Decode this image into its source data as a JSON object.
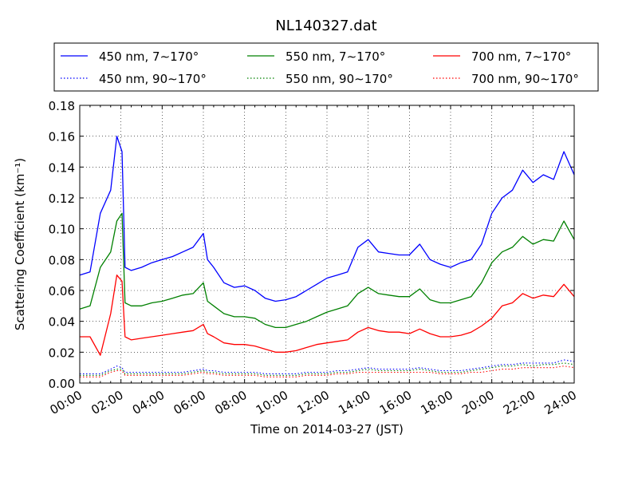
{
  "chart_data": {
    "type": "line",
    "title": "NL140327.dat",
    "xlabel": "Time on 2014-03-27 (JST)",
    "ylabel": "Scattering Coefficient (km⁻¹)",
    "xlim": [
      0,
      24
    ],
    "ylim": [
      0,
      0.18
    ],
    "grid": true,
    "legend_position": "top",
    "x_ticks": [
      "00:00",
      "02:00",
      "04:00",
      "06:00",
      "08:00",
      "10:00",
      "12:00",
      "14:00",
      "16:00",
      "18:00",
      "20:00",
      "22:00",
      "24:00"
    ],
    "y_ticks": [
      "0.00",
      "0.02",
      "0.04",
      "0.06",
      "0.08",
      "0.10",
      "0.12",
      "0.14",
      "0.16",
      "0.18"
    ],
    "x_hours": [
      0,
      0.5,
      1,
      1.5,
      1.8,
      2.05,
      2.2,
      2.5,
      3,
      3.5,
      4,
      4.5,
      5,
      5.5,
      6,
      6.2,
      6.5,
      7,
      7.5,
      8,
      8.5,
      9,
      9.5,
      10,
      10.5,
      11,
      11.5,
      12,
      12.5,
      13,
      13.5,
      14,
      14.5,
      15,
      15.5,
      16,
      16.5,
      17,
      17.5,
      18,
      18.5,
      19,
      19.5,
      20,
      20.5,
      21,
      21.5,
      22,
      22.5,
      23,
      23.5,
      24
    ],
    "series": [
      {
        "name": "450 nm, 7∼170°",
        "color": "#0000ff",
        "style": "solid",
        "values": [
          0.07,
          0.072,
          0.11,
          0.125,
          0.16,
          0.15,
          0.075,
          0.073,
          0.075,
          0.078,
          0.08,
          0.082,
          0.085,
          0.088,
          0.097,
          0.08,
          0.075,
          0.065,
          0.062,
          0.063,
          0.06,
          0.055,
          0.053,
          0.054,
          0.056,
          0.06,
          0.064,
          0.068,
          0.07,
          0.072,
          0.088,
          0.093,
          0.085,
          0.084,
          0.083,
          0.083,
          0.09,
          0.08,
          0.077,
          0.075,
          0.078,
          0.08,
          0.09,
          0.11,
          0.12,
          0.125,
          0.138,
          0.13,
          0.135,
          0.132,
          0.15,
          0.135
        ]
      },
      {
        "name": "550 nm, 7∼170°",
        "color": "#008000",
        "style": "solid",
        "values": [
          0.048,
          0.05,
          0.075,
          0.085,
          0.105,
          0.11,
          0.052,
          0.05,
          0.05,
          0.052,
          0.053,
          0.055,
          0.057,
          0.058,
          0.065,
          0.053,
          0.05,
          0.045,
          0.043,
          0.043,
          0.042,
          0.038,
          0.036,
          0.036,
          0.038,
          0.04,
          0.043,
          0.046,
          0.048,
          0.05,
          0.058,
          0.062,
          0.058,
          0.057,
          0.056,
          0.056,
          0.061,
          0.054,
          0.052,
          0.052,
          0.054,
          0.056,
          0.065,
          0.078,
          0.085,
          0.088,
          0.095,
          0.09,
          0.093,
          0.092,
          0.105,
          0.093
        ]
      },
      {
        "name": "700 nm, 7∼170°",
        "color": "#ff0000",
        "style": "solid",
        "values": [
          0.03,
          0.03,
          0.018,
          0.045,
          0.07,
          0.066,
          0.03,
          0.028,
          0.029,
          0.03,
          0.031,
          0.032,
          0.033,
          0.034,
          0.038,
          0.032,
          0.03,
          0.026,
          0.025,
          0.025,
          0.024,
          0.022,
          0.02,
          0.02,
          0.021,
          0.023,
          0.025,
          0.026,
          0.027,
          0.028,
          0.033,
          0.036,
          0.034,
          0.033,
          0.033,
          0.032,
          0.035,
          0.032,
          0.03,
          0.03,
          0.031,
          0.033,
          0.037,
          0.042,
          0.05,
          0.052,
          0.058,
          0.055,
          0.057,
          0.056,
          0.064,
          0.056
        ]
      },
      {
        "name": "450 nm, 90∼170°",
        "color": "#0000ff",
        "style": "dotted",
        "values": [
          0.006,
          0.006,
          0.006,
          0.009,
          0.011,
          0.01,
          0.007,
          0.007,
          0.007,
          0.007,
          0.007,
          0.007,
          0.007,
          0.008,
          0.009,
          0.008,
          0.008,
          0.007,
          0.007,
          0.007,
          0.007,
          0.006,
          0.006,
          0.006,
          0.006,
          0.007,
          0.007,
          0.007,
          0.008,
          0.008,
          0.009,
          0.01,
          0.009,
          0.009,
          0.009,
          0.009,
          0.01,
          0.009,
          0.008,
          0.008,
          0.008,
          0.009,
          0.01,
          0.011,
          0.012,
          0.012,
          0.013,
          0.013,
          0.013,
          0.013,
          0.015,
          0.014
        ]
      },
      {
        "name": "550 nm, 90∼170°",
        "color": "#008000",
        "style": "dotted",
        "values": [
          0.005,
          0.005,
          0.005,
          0.008,
          0.009,
          0.009,
          0.006,
          0.006,
          0.006,
          0.006,
          0.006,
          0.006,
          0.006,
          0.007,
          0.008,
          0.007,
          0.007,
          0.006,
          0.006,
          0.006,
          0.006,
          0.005,
          0.005,
          0.005,
          0.005,
          0.006,
          0.006,
          0.006,
          0.007,
          0.007,
          0.008,
          0.009,
          0.008,
          0.008,
          0.008,
          0.008,
          0.009,
          0.008,
          0.007,
          0.007,
          0.007,
          0.008,
          0.009,
          0.01,
          0.011,
          0.011,
          0.012,
          0.011,
          0.012,
          0.012,
          0.013,
          0.012
        ]
      },
      {
        "name": "700 nm, 90∼170°",
        "color": "#ff0000",
        "style": "dotted",
        "values": [
          0.004,
          0.004,
          0.004,
          0.007,
          0.008,
          0.008,
          0.005,
          0.005,
          0.005,
          0.005,
          0.005,
          0.005,
          0.005,
          0.006,
          0.007,
          0.006,
          0.006,
          0.005,
          0.005,
          0.005,
          0.005,
          0.004,
          0.004,
          0.004,
          0.004,
          0.005,
          0.005,
          0.005,
          0.006,
          0.006,
          0.007,
          0.007,
          0.007,
          0.007,
          0.007,
          0.007,
          0.007,
          0.007,
          0.006,
          0.006,
          0.006,
          0.007,
          0.007,
          0.008,
          0.009,
          0.009,
          0.01,
          0.01,
          0.01,
          0.01,
          0.011,
          0.01
        ]
      }
    ]
  }
}
